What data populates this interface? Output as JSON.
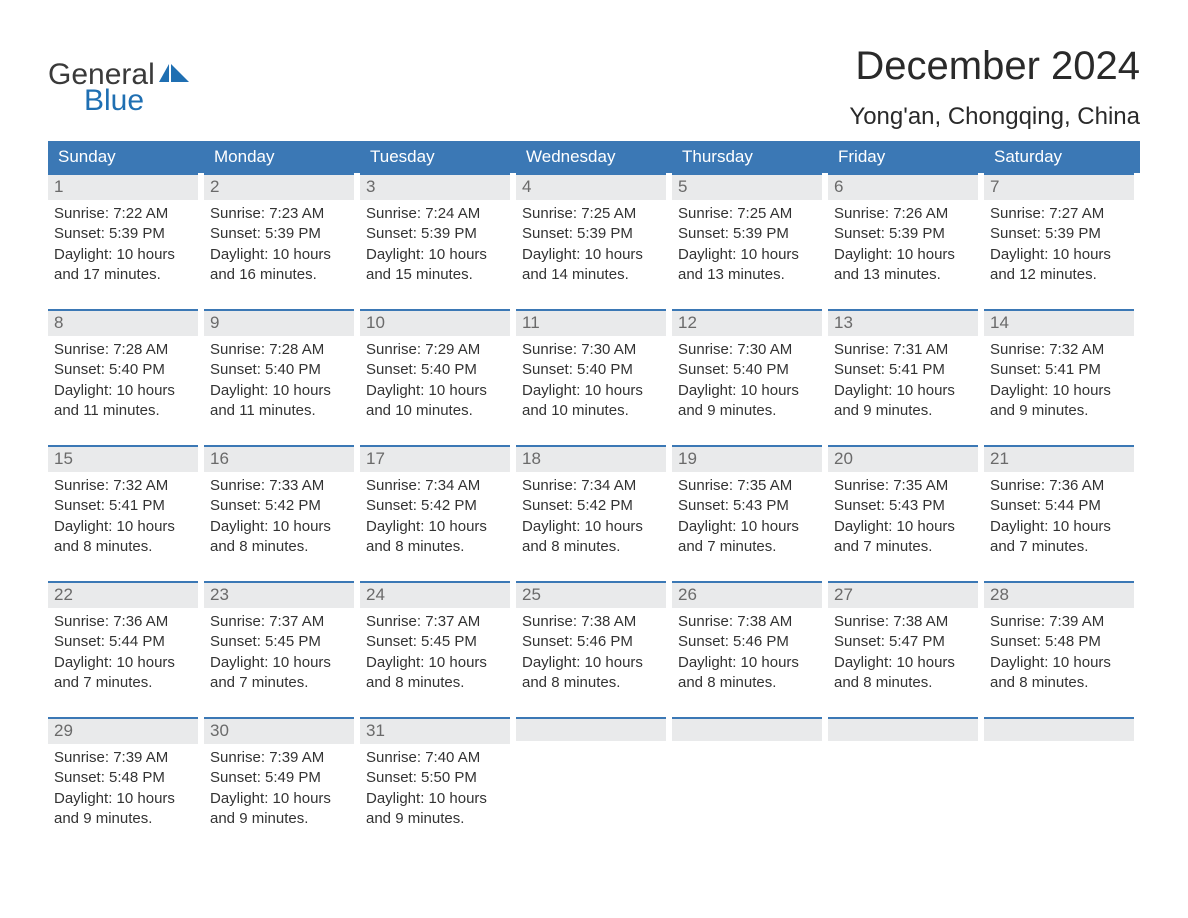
{
  "brand": {
    "general": "General",
    "blue": "Blue",
    "logo_color_dark": "#1f6fb2",
    "logo_color_light": "#6aa7dc"
  },
  "title": "December 2024",
  "location": "Yong'an, Chongqing, China",
  "colors": {
    "header_bg": "#3b78b5",
    "header_text": "#ffffff",
    "daynum_bg": "#e9eaeb",
    "daynum_border": "#3b78b5",
    "daynum_text": "#6a6a6a",
    "body_text": "#333333",
    "page_bg": "#ffffff"
  },
  "weekdays": [
    "Sunday",
    "Monday",
    "Tuesday",
    "Wednesday",
    "Thursday",
    "Friday",
    "Saturday"
  ],
  "weeks": [
    [
      {
        "day": "1",
        "sunrise": "7:22 AM",
        "sunset": "5:39 PM",
        "daylight": "10 hours and 17 minutes."
      },
      {
        "day": "2",
        "sunrise": "7:23 AM",
        "sunset": "5:39 PM",
        "daylight": "10 hours and 16 minutes."
      },
      {
        "day": "3",
        "sunrise": "7:24 AM",
        "sunset": "5:39 PM",
        "daylight": "10 hours and 15 minutes."
      },
      {
        "day": "4",
        "sunrise": "7:25 AM",
        "sunset": "5:39 PM",
        "daylight": "10 hours and 14 minutes."
      },
      {
        "day": "5",
        "sunrise": "7:25 AM",
        "sunset": "5:39 PM",
        "daylight": "10 hours and 13 minutes."
      },
      {
        "day": "6",
        "sunrise": "7:26 AM",
        "sunset": "5:39 PM",
        "daylight": "10 hours and 13 minutes."
      },
      {
        "day": "7",
        "sunrise": "7:27 AM",
        "sunset": "5:39 PM",
        "daylight": "10 hours and 12 minutes."
      }
    ],
    [
      {
        "day": "8",
        "sunrise": "7:28 AM",
        "sunset": "5:40 PM",
        "daylight": "10 hours and 11 minutes."
      },
      {
        "day": "9",
        "sunrise": "7:28 AM",
        "sunset": "5:40 PM",
        "daylight": "10 hours and 11 minutes."
      },
      {
        "day": "10",
        "sunrise": "7:29 AM",
        "sunset": "5:40 PM",
        "daylight": "10 hours and 10 minutes."
      },
      {
        "day": "11",
        "sunrise": "7:30 AM",
        "sunset": "5:40 PM",
        "daylight": "10 hours and 10 minutes."
      },
      {
        "day": "12",
        "sunrise": "7:30 AM",
        "sunset": "5:40 PM",
        "daylight": "10 hours and 9 minutes."
      },
      {
        "day": "13",
        "sunrise": "7:31 AM",
        "sunset": "5:41 PM",
        "daylight": "10 hours and 9 minutes."
      },
      {
        "day": "14",
        "sunrise": "7:32 AM",
        "sunset": "5:41 PM",
        "daylight": "10 hours and 9 minutes."
      }
    ],
    [
      {
        "day": "15",
        "sunrise": "7:32 AM",
        "sunset": "5:41 PM",
        "daylight": "10 hours and 8 minutes."
      },
      {
        "day": "16",
        "sunrise": "7:33 AM",
        "sunset": "5:42 PM",
        "daylight": "10 hours and 8 minutes."
      },
      {
        "day": "17",
        "sunrise": "7:34 AM",
        "sunset": "5:42 PM",
        "daylight": "10 hours and 8 minutes."
      },
      {
        "day": "18",
        "sunrise": "7:34 AM",
        "sunset": "5:42 PM",
        "daylight": "10 hours and 8 minutes."
      },
      {
        "day": "19",
        "sunrise": "7:35 AM",
        "sunset": "5:43 PM",
        "daylight": "10 hours and 7 minutes."
      },
      {
        "day": "20",
        "sunrise": "7:35 AM",
        "sunset": "5:43 PM",
        "daylight": "10 hours and 7 minutes."
      },
      {
        "day": "21",
        "sunrise": "7:36 AM",
        "sunset": "5:44 PM",
        "daylight": "10 hours and 7 minutes."
      }
    ],
    [
      {
        "day": "22",
        "sunrise": "7:36 AM",
        "sunset": "5:44 PM",
        "daylight": "10 hours and 7 minutes."
      },
      {
        "day": "23",
        "sunrise": "7:37 AM",
        "sunset": "5:45 PM",
        "daylight": "10 hours and 7 minutes."
      },
      {
        "day": "24",
        "sunrise": "7:37 AM",
        "sunset": "5:45 PM",
        "daylight": "10 hours and 8 minutes."
      },
      {
        "day": "25",
        "sunrise": "7:38 AM",
        "sunset": "5:46 PM",
        "daylight": "10 hours and 8 minutes."
      },
      {
        "day": "26",
        "sunrise": "7:38 AM",
        "sunset": "5:46 PM",
        "daylight": "10 hours and 8 minutes."
      },
      {
        "day": "27",
        "sunrise": "7:38 AM",
        "sunset": "5:47 PM",
        "daylight": "10 hours and 8 minutes."
      },
      {
        "day": "28",
        "sunrise": "7:39 AM",
        "sunset": "5:48 PM",
        "daylight": "10 hours and 8 minutes."
      }
    ],
    [
      {
        "day": "29",
        "sunrise": "7:39 AM",
        "sunset": "5:48 PM",
        "daylight": "10 hours and 9 minutes."
      },
      {
        "day": "30",
        "sunrise": "7:39 AM",
        "sunset": "5:49 PM",
        "daylight": "10 hours and 9 minutes."
      },
      {
        "day": "31",
        "sunrise": "7:40 AM",
        "sunset": "5:50 PM",
        "daylight": "10 hours and 9 minutes."
      },
      null,
      null,
      null,
      null
    ]
  ],
  "labels": {
    "sunrise": "Sunrise: ",
    "sunset": "Sunset: ",
    "daylight": "Daylight: "
  }
}
